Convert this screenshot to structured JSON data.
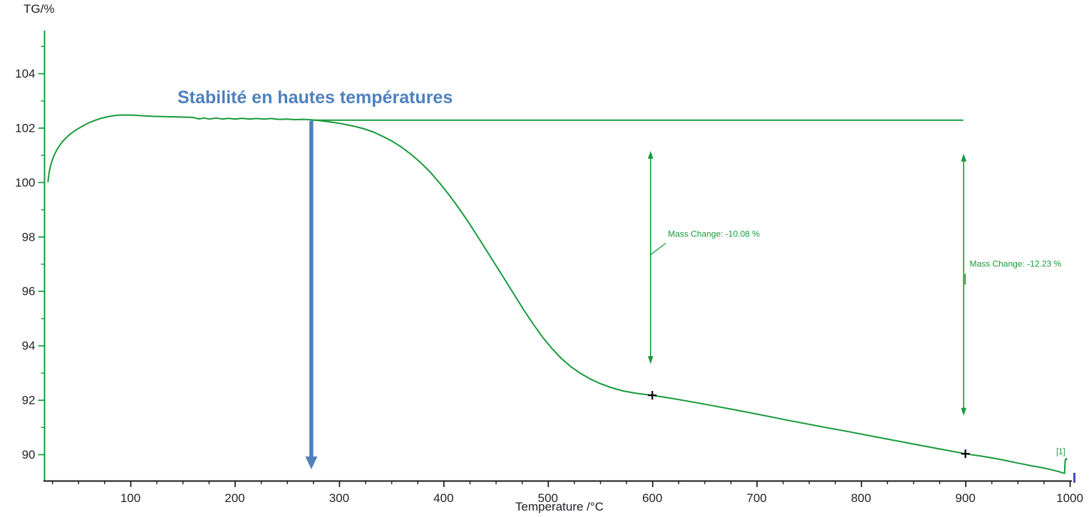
{
  "chart_data": {
    "type": "line",
    "title": "",
    "xlabel": "Temperature /°C",
    "ylabel": "TG/%",
    "xlim": [
      15,
      1010
    ],
    "ylim": [
      89.0,
      105.5
    ],
    "grid": false,
    "legend": false,
    "x_axis": {
      "major_ticks": [
        100,
        200,
        300,
        400,
        500,
        600,
        700,
        800,
        900,
        1000
      ],
      "minor_start": 25,
      "minor_step": 25,
      "minor_end": 1000
    },
    "y_axis": {
      "major_ticks": [
        90,
        92,
        94,
        96,
        98,
        100,
        102,
        104
      ],
      "minor_ticks": [
        89,
        91,
        93,
        95,
        97,
        99,
        101,
        103,
        105
      ]
    },
    "colors": {
      "curve": "#189A3B",
      "axis_line": "#1a1a1a",
      "tick_text": "#23232b",
      "accent_blue": "#4F81BD",
      "axis_end_marker": "#3F51C1"
    },
    "series": [
      {
        "name": "TG [1]",
        "color": "#189A3B",
        "points": [
          [
            21,
            100.0
          ],
          [
            21.5,
            100.18
          ],
          [
            22,
            100.34
          ],
          [
            23,
            100.52
          ],
          [
            24,
            100.68
          ],
          [
            25.5,
            100.85
          ],
          [
            27,
            101.0
          ],
          [
            29,
            101.15
          ],
          [
            31,
            101.28
          ],
          [
            33.5,
            101.42
          ],
          [
            36,
            101.54
          ],
          [
            39,
            101.65
          ],
          [
            42,
            101.76
          ],
          [
            46,
            101.87
          ],
          [
            50,
            101.97
          ],
          [
            55,
            102.08
          ],
          [
            60,
            102.18
          ],
          [
            66,
            102.27
          ],
          [
            72,
            102.35
          ],
          [
            80,
            102.42
          ],
          [
            88,
            102.46
          ],
          [
            96,
            102.47
          ],
          [
            104,
            102.46
          ],
          [
            112,
            102.44
          ],
          [
            122,
            102.42
          ],
          [
            132,
            102.41
          ],
          [
            142,
            102.4
          ],
          [
            152,
            102.39
          ],
          [
            160,
            102.38
          ],
          [
            166,
            102.32
          ],
          [
            170,
            102.36
          ],
          [
            176,
            102.32
          ],
          [
            182,
            102.36
          ],
          [
            188,
            102.32
          ],
          [
            194,
            102.35
          ],
          [
            200,
            102.32
          ],
          [
            207,
            102.35
          ],
          [
            214,
            102.32
          ],
          [
            221,
            102.34
          ],
          [
            228,
            102.32
          ],
          [
            235,
            102.34
          ],
          [
            242,
            102.31
          ],
          [
            250,
            102.32
          ],
          [
            258,
            102.3
          ],
          [
            266,
            102.31
          ],
          [
            273,
            102.29
          ],
          [
            280,
            102.27
          ],
          [
            288,
            102.23
          ],
          [
            296,
            102.19
          ],
          [
            305,
            102.13
          ],
          [
            315,
            102.05
          ],
          [
            324,
            101.96
          ],
          [
            333,
            101.84
          ],
          [
            342,
            101.68
          ],
          [
            351,
            101.5
          ],
          [
            360,
            101.28
          ],
          [
            369,
            101.02
          ],
          [
            378,
            100.72
          ],
          [
            387,
            100.38
          ],
          [
            396,
            99.98
          ],
          [
            405,
            99.55
          ],
          [
            414,
            99.08
          ],
          [
            423,
            98.58
          ],
          [
            432,
            98.05
          ],
          [
            441,
            97.5
          ],
          [
            450,
            96.95
          ],
          [
            459,
            96.4
          ],
          [
            468,
            95.85
          ],
          [
            477,
            95.3
          ],
          [
            486,
            94.78
          ],
          [
            495,
            94.3
          ],
          [
            504,
            93.88
          ],
          [
            513,
            93.52
          ],
          [
            522,
            93.22
          ],
          [
            531,
            92.98
          ],
          [
            540,
            92.78
          ],
          [
            550,
            92.6
          ],
          [
            560,
            92.46
          ],
          [
            572,
            92.33
          ],
          [
            585,
            92.24
          ],
          [
            600,
            92.17
          ],
          [
            620,
            92.05
          ],
          [
            645,
            91.88
          ],
          [
            670,
            91.7
          ],
          [
            700,
            91.48
          ],
          [
            730,
            91.25
          ],
          [
            760,
            91.03
          ],
          [
            790,
            90.82
          ],
          [
            820,
            90.6
          ],
          [
            850,
            90.38
          ],
          [
            875,
            90.2
          ],
          [
            900,
            90.02
          ],
          [
            918,
            89.92
          ],
          [
            935,
            89.8
          ],
          [
            950,
            89.68
          ],
          [
            963,
            89.58
          ],
          [
            975,
            89.5
          ],
          [
            984,
            89.42
          ],
          [
            990,
            89.36
          ],
          [
            994,
            89.31
          ],
          [
            995,
            89.3
          ],
          [
            995.5,
            89.78
          ],
          [
            996.5,
            89.84
          ],
          [
            997.5,
            89.8
          ]
        ]
      }
    ],
    "reference_line": {
      "tg": 102.28,
      "t_start": 273,
      "t_end": 898
    },
    "markers": [
      {
        "t": 600,
        "tg": 92.17
      },
      {
        "t": 900,
        "tg": 90.02
      }
    ],
    "curve_end_tag": {
      "label": "[1]",
      "t": 989,
      "tg": 90.1
    }
  },
  "annotations": {
    "stability": {
      "text": "Stabilité en hautes températures",
      "color": "#4F81BD",
      "arrow_t": 273,
      "arrow_top_tg": 102.28,
      "arrow_bottom_tg": 89.45
    },
    "mass_changes": [
      {
        "label": "Mass Change: -10.08 %",
        "t": 598,
        "arrow_top_tg": 101.15,
        "arrow_bottom_tg": 93.32,
        "text_t": 615,
        "text_tg": 98.1,
        "leader": "diagonal"
      },
      {
        "label": "Mass Change: -12.23 %",
        "t": 898,
        "arrow_top_tg": 101.05,
        "arrow_bottom_tg": 91.42,
        "text_t": 904,
        "text_tg": 97.0,
        "leader": "vertical"
      }
    ]
  }
}
